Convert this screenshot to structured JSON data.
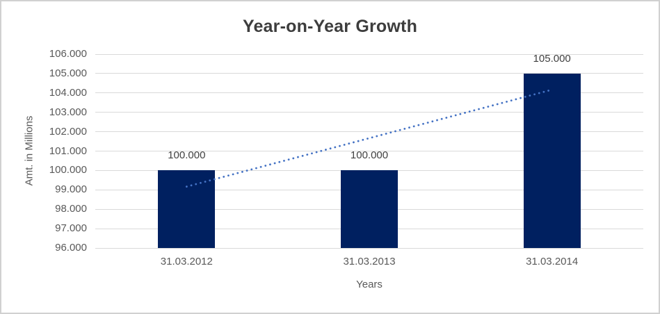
{
  "chart_data": {
    "type": "bar",
    "title": "Year-on-Year Growth",
    "xlabel": "Years",
    "ylabel": "Amt. in Millions",
    "categories": [
      "31.03.2012",
      "31.03.2013",
      "31.03.2014"
    ],
    "values": [
      100000,
      100000,
      105000
    ],
    "data_labels": [
      "100.000",
      "100.000",
      "105.000"
    ],
    "y_ticks": [
      "96.000",
      "97.000",
      "98.000",
      "99.000",
      "100.000",
      "101.000",
      "102.000",
      "103.000",
      "104.000",
      "105.000",
      "106.000"
    ],
    "ylim": [
      96000,
      106000
    ],
    "y_step": 1000,
    "grid": true,
    "legend": "none",
    "trendline": {
      "type": "linear",
      "style": "dotted",
      "start_value": 99167,
      "end_value": 104167
    },
    "colors": {
      "bar": "#002060",
      "trendline": "#4472c4",
      "gridline": "#d9d9d9",
      "axis_text": "#595959",
      "title_text": "#3d3d3d",
      "data_label_text": "#404040",
      "frame_border": "#d0d0d0"
    }
  }
}
